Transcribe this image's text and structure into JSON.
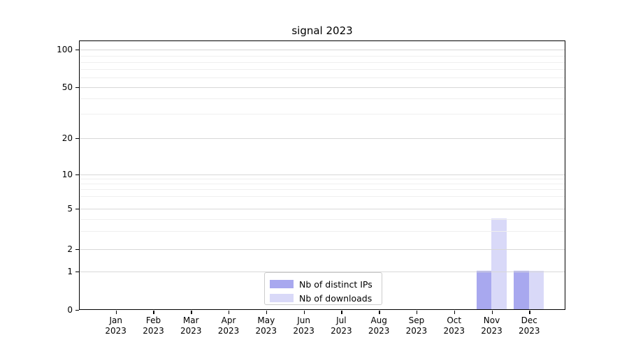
{
  "title": "signal 2023",
  "chart_data": {
    "type": "bar",
    "title": "signal 2023",
    "categories": [
      "Jan 2023",
      "Feb 2023",
      "Mar 2023",
      "Apr 2023",
      "May 2023",
      "Jun 2023",
      "Jul 2023",
      "Aug 2023",
      "Sep 2023",
      "Oct 2023",
      "Nov 2023",
      "Dec 2023"
    ],
    "series": [
      {
        "name": "Nb of distinct IPs",
        "color": "#a8a8ef",
        "values": [
          0,
          0,
          0,
          0,
          0,
          0,
          0,
          0,
          0,
          0,
          1,
          1
        ]
      },
      {
        "name": "Nb of downloads",
        "color": "#d9d9f8",
        "values": [
          0,
          0,
          0,
          0,
          0,
          0,
          0,
          0,
          0,
          0,
          4,
          1
        ]
      }
    ],
    "xlabel": "",
    "ylabel": "",
    "y_scale": "log-like",
    "ylim": [
      0,
      130
    ],
    "y_ticks": [
      0,
      1,
      2,
      5,
      10,
      20,
      50,
      100
    ],
    "y_minor_ticks": [
      3,
      4,
      6,
      7,
      8,
      9,
      30,
      40,
      60,
      70,
      80,
      90
    ],
    "grid": true,
    "legend_position": "lower center"
  },
  "x_axis": {
    "months": [
      "Jan",
      "Feb",
      "Mar",
      "Apr",
      "May",
      "Jun",
      "Jul",
      "Aug",
      "Sep",
      "Oct",
      "Nov",
      "Dec"
    ],
    "year": "2023"
  },
  "colors": {
    "distinct_ips": "#a8a8ef",
    "downloads": "#d9d9f8",
    "major_grid": "#d8d8d8",
    "minor_grid": "#efefef"
  }
}
